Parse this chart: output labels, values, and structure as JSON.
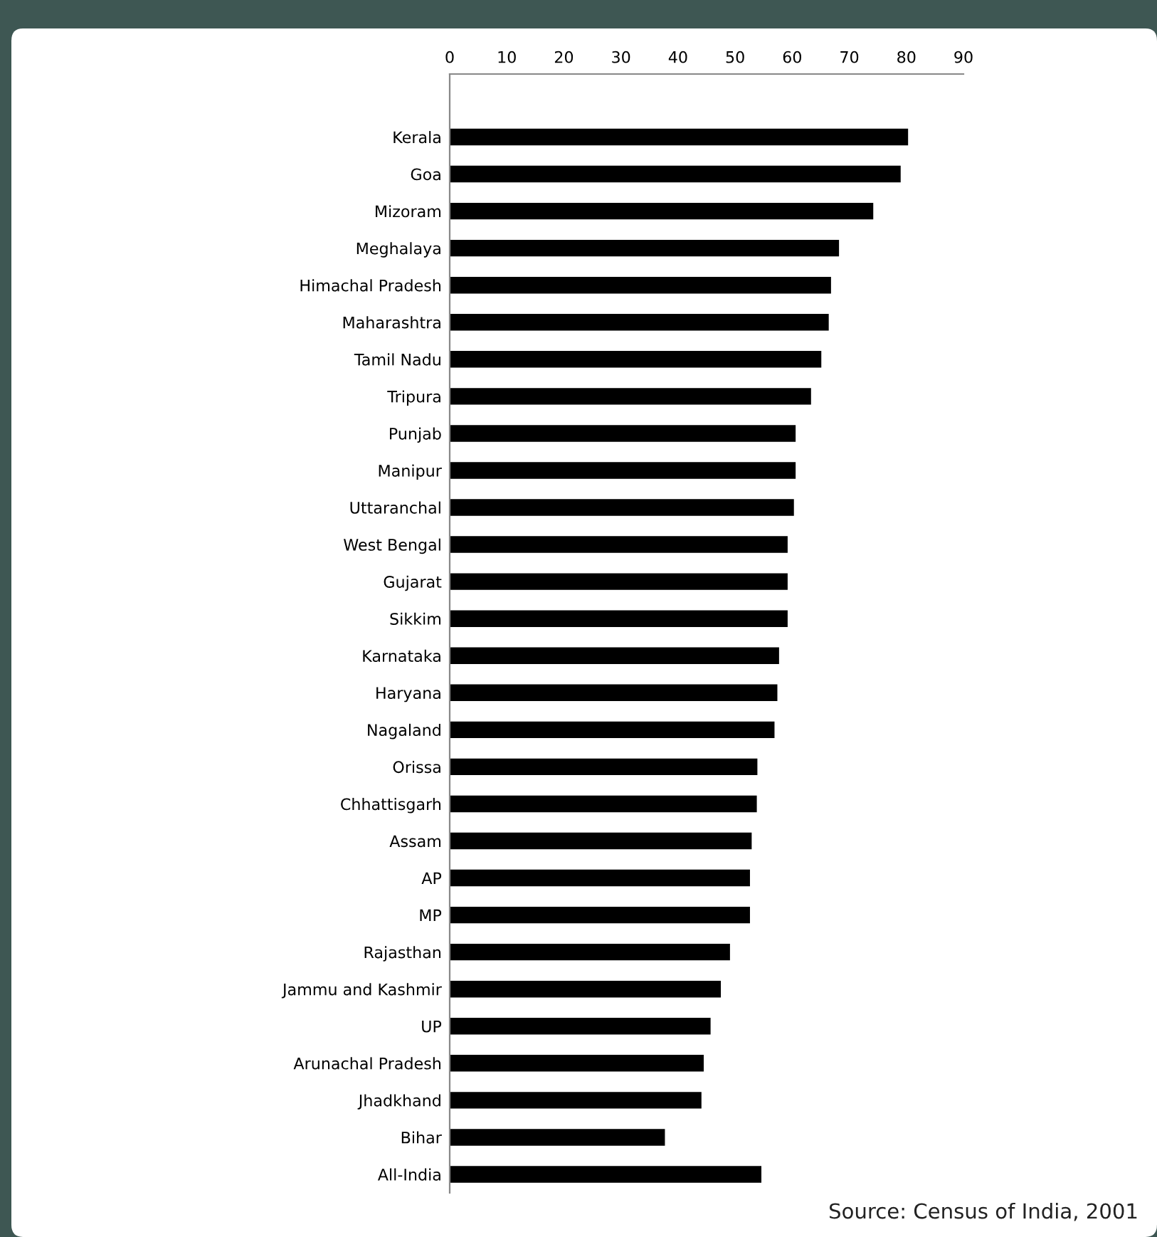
{
  "chart_data": {
    "type": "bar",
    "orientation": "horizontal",
    "categories": [
      "Kerala",
      "Goa",
      "Mizoram",
      "Meghalaya",
      "Himachal Pradesh",
      "Maharashtra",
      "Tamil Nadu",
      "Tripura",
      "Punjab",
      "Manipur",
      "Uttaranchal",
      "West Bengal",
      "Gujarat",
      "Sikkim",
      "Karnataka",
      "Haryana",
      "Nagaland",
      "Orissa",
      "Chhattisgarh",
      "Assam",
      "AP",
      "MP",
      "Rajasthan",
      "Jammu and Kashmir",
      "UP",
      "Arunachal Pradesh",
      "Jhadkhand",
      "Bihar",
      "All-India"
    ],
    "values": [
      80.3,
      79.0,
      74.2,
      68.2,
      66.8,
      66.4,
      65.1,
      63.3,
      60.6,
      60.6,
      60.3,
      59.2,
      59.2,
      59.2,
      57.7,
      57.4,
      56.9,
      53.9,
      53.8,
      52.9,
      52.6,
      52.6,
      49.1,
      47.5,
      45.7,
      44.5,
      44.1,
      37.7,
      54.6
    ],
    "color": "#000000",
    "xlim": [
      0,
      90
    ],
    "xticks": [
      0,
      10,
      20,
      30,
      40,
      50,
      60,
      70,
      80,
      90
    ],
    "grid": false,
    "annotations": [
      "Source: Census of India, 2001"
    ]
  }
}
